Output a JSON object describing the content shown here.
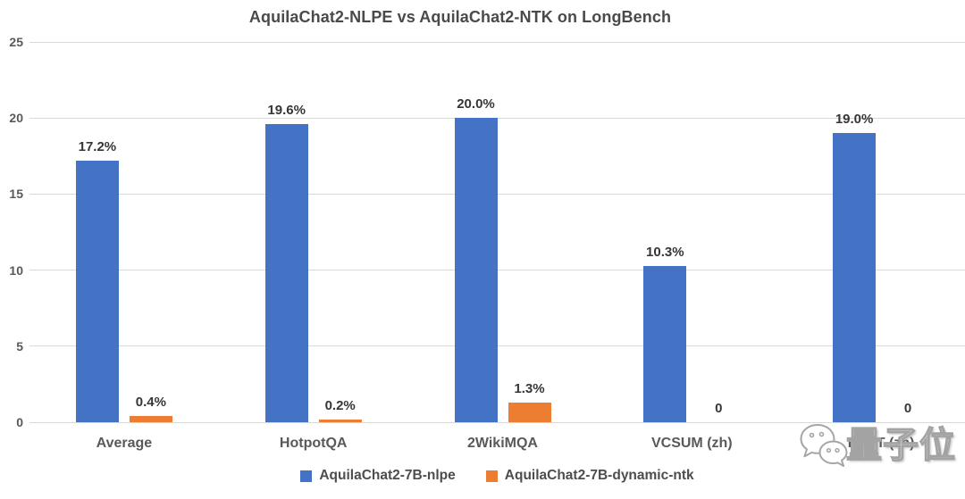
{
  "chart_data": {
    "type": "bar",
    "title": "AquilaChat2-NLPE vs AquilaChat2-NTK on LongBench",
    "categories": [
      "Average",
      "HotpotQA",
      "2WikiMQA",
      "VCSUM (zh)",
      "LSHT (zh)"
    ],
    "series": [
      {
        "name": "AquilaChat2-7B-nlpe",
        "color": "#4472C4",
        "values": [
          17.2,
          19.6,
          20.0,
          10.3,
          19.0
        ],
        "labels": [
          "17.2%",
          "19.6%",
          "20.0%",
          "10.3%",
          "19.0%"
        ]
      },
      {
        "name": "AquilaChat2-7B-dynamic-ntk",
        "color": "#ED7D31",
        "values": [
          0.4,
          0.2,
          1.3,
          0,
          0
        ],
        "labels": [
          "0.4%",
          "0.2%",
          "1.3%",
          "0",
          "0"
        ]
      }
    ],
    "xlabel": "",
    "ylabel": "",
    "y_axis": {
      "min": 0,
      "max": 25,
      "step": 5,
      "ticks": [
        "0",
        "5",
        "10",
        "15",
        "20",
        "25"
      ]
    },
    "grid": true,
    "legend_position": "bottom"
  },
  "colors": {
    "series_blue": "#4472C4",
    "series_orange": "#ED7D31",
    "gridline": "#d9d9d9",
    "axis_text": "#595959",
    "value_text": "#363636",
    "title_text": "#4a4a4a"
  },
  "watermark": {
    "text": "量子位",
    "icon": "wechat-icon"
  }
}
